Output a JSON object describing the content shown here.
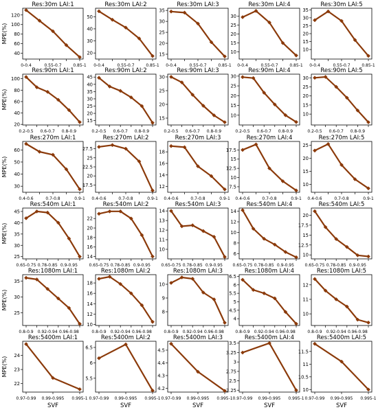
{
  "ylabel": "MPE(%)",
  "xlabel": "SVF",
  "line_color": "#8B3A0A",
  "chart_data": [
    {
      "type": "line",
      "title": "Res:30m   LAI:1",
      "categories": [
        "0-0.4",
        "",
        "0.55-0.7",
        "",
        "0.85-1"
      ],
      "values": [
        130,
        108,
        86,
        57,
        32
      ],
      "yticks": [
        40,
        60,
        80,
        100,
        120
      ],
      "ylim": [
        28,
        134
      ]
    },
    {
      "type": "line",
      "title": "Res:30m   LAI:2",
      "categories": [
        "0-0.4",
        "",
        "0.55-0.7",
        "",
        "0.85-1"
      ],
      "values": [
        54.5,
        47.5,
        41,
        32,
        17.5
      ],
      "yticks": [
        20,
        30,
        40,
        50
      ],
      "ylim": [
        15,
        57
      ]
    },
    {
      "type": "line",
      "title": "Res:30m   LAI:3",
      "categories": [
        "0-0.4",
        "",
        "0.55-0.7",
        "",
        "0.85-1"
      ],
      "values": [
        34.5,
        34,
        29,
        20.5,
        14
      ],
      "yticks": [
        15,
        20,
        25,
        30,
        35
      ],
      "ylim": [
        12.8,
        36
      ]
    },
    {
      "type": "line",
      "title": "Res:30m   LAI:4",
      "categories": [
        "0-0.4",
        "",
        "0.55-0.7",
        "",
        "0.85-1"
      ],
      "values": [
        29.5,
        33,
        26.5,
        15,
        8
      ],
      "yticks": [
        10,
        15,
        20,
        25,
        30
      ],
      "ylim": [
        6,
        34.5
      ]
    },
    {
      "type": "line",
      "title": "Res:30m   LAI:5",
      "categories": [
        "0-0.4",
        "",
        "0.55-0.7",
        "",
        "0.85-1"
      ],
      "values": [
        28.5,
        34,
        28,
        16,
        6
      ],
      "yticks": [
        10,
        15,
        20,
        25,
        30,
        35
      ],
      "ylim": [
        4,
        36
      ]
    },
    {
      "type": "line",
      "title": "Res:90m   LAI:1",
      "categories": [
        "0.2-0.5",
        "",
        "0.6-0.7",
        "",
        "0.8-0.9",
        ""
      ],
      "values": [
        103,
        85,
        77,
        63,
        45,
        24
      ],
      "yticks": [
        20,
        40,
        60,
        80,
        100
      ],
      "ylim": [
        19,
        108
      ]
    },
    {
      "type": "line",
      "title": "Res:90m   LAI:2",
      "categories": [
        "0.2-0.5",
        "",
        "0.6-0.7",
        "",
        "0.8-0.9",
        ""
      ],
      "values": [
        44.5,
        38.5,
        35.5,
        31,
        25,
        13.5
      ],
      "yticks": [
        15,
        20,
        25,
        30,
        35,
        40,
        45
      ],
      "ylim": [
        12,
        47
      ]
    },
    {
      "type": "line",
      "title": "Res:90m   LAI:3",
      "categories": [
        "0.2-0.5",
        "",
        "0.6-0.7",
        "",
        "0.8-0.9",
        ""
      ],
      "values": [
        30,
        28,
        23.5,
        19.5,
        16,
        13.5
      ],
      "yticks": [
        15,
        20,
        25,
        30
      ],
      "ylim": [
        12.5,
        31
      ]
    },
    {
      "type": "line",
      "title": "Res:90m   LAI:4",
      "categories": [
        "0.2-0.5",
        "",
        "0.6-0.7",
        "",
        "0.8-0.9",
        ""
      ],
      "values": [
        29.5,
        29,
        21.5,
        15.5,
        10,
        6.5
      ],
      "yticks": [
        10,
        15,
        20,
        25,
        30
      ],
      "ylim": [
        5,
        31
      ]
    },
    {
      "type": "line",
      "title": "Res:90m   LAI:5",
      "categories": [
        "0.2-0.5",
        "",
        "0.6-0.7",
        "",
        "0.8-0.9",
        ""
      ],
      "values": [
        30,
        30.5,
        25,
        19,
        12,
        5.5
      ],
      "yticks": [
        10,
        15,
        20,
        25,
        30
      ],
      "ylim": [
        4,
        32
      ]
    },
    {
      "type": "line",
      "title": "Res:270m   LAI:1",
      "categories": [
        "0.4-0.6",
        "",
        "0.7-0.8",
        "",
        "0.9-1"
      ],
      "values": [
        65,
        58.5,
        56,
        44,
        27.5
      ],
      "yticks": [
        30,
        40,
        50,
        60
      ],
      "ylim": [
        25,
        67
      ]
    },
    {
      "type": "line",
      "title": "Res:270m   LAI:2",
      "categories": [
        "0.4-0.6",
        "",
        "0.7-0.8",
        "",
        "0.9-1"
      ],
      "values": [
        28,
        28.5,
        27.5,
        24,
        16
      ],
      "yticks": [
        17.5,
        20,
        22.5,
        25,
        27.5
      ],
      "ylim": [
        15.5,
        29.5
      ]
    },
    {
      "type": "line",
      "title": "Res:270m   LAI:3",
      "categories": [
        "0.4-0.6",
        "",
        "0.7-0.8",
        "",
        "0.9-1"
      ],
      "values": [
        19,
        18.8,
        15.5,
        13.8,
        11.5
      ],
      "yticks": [
        12,
        14,
        16,
        18
      ],
      "ylim": [
        11,
        19.8
      ]
    },
    {
      "type": "line",
      "title": "Res:270m   LAI:4",
      "categories": [
        "0.4-0.6",
        "",
        "0.7-0.8",
        "",
        "0.9-1"
      ],
      "values": [
        17.5,
        19,
        12.5,
        9,
        6.5
      ],
      "yticks": [
        7.5,
        10,
        12.5,
        15,
        17.5
      ],
      "ylim": [
        6,
        19.8
      ]
    },
    {
      "type": "line",
      "title": "Res:270m   LAI:5",
      "categories": [
        "0.4-0.6",
        "",
        "0.7-0.8",
        "",
        "0.9-1"
      ],
      "values": [
        23,
        25.5,
        17.5,
        12,
        8.5
      ],
      "yticks": [
        10,
        15,
        20,
        25
      ],
      "ylim": [
        7,
        26.5
      ]
    },
    {
      "type": "line",
      "title": "Res:540m   LAI:1",
      "categories": [
        "0.65-0.75",
        "",
        "0.78-0.85",
        "",
        "0.9-0.95",
        ""
      ],
      "values": [
        42,
        45,
        44.5,
        40,
        33,
        25
      ],
      "yticks": [
        25,
        30,
        35,
        40,
        45
      ],
      "ylim": [
        24,
        46.5
      ]
    },
    {
      "type": "line",
      "title": "Res:540m   LAI:2",
      "categories": [
        "0.65-0.75",
        "",
        "0.78-0.85",
        "",
        "0.9-0.95",
        ""
      ],
      "values": [
        23,
        23.5,
        23.5,
        22,
        18.5,
        14
      ],
      "yticks": [
        14,
        16,
        18,
        20,
        22
      ],
      "ylim": [
        13.5,
        24.2
      ]
    },
    {
      "type": "line",
      "title": "Res:540m   LAI:3",
      "categories": [
        "0.65-0.75",
        "",
        "0.78-0.85",
        "",
        "0.9-0.95",
        ""
      ],
      "values": [
        14,
        12.4,
        12.5,
        11.9,
        11.3,
        9.2
      ],
      "yticks": [
        10,
        11,
        12,
        13,
        14
      ],
      "ylim": [
        9,
        14.3
      ]
    },
    {
      "type": "line",
      "title": "Res:540m   LAI:4",
      "categories": [
        "0.65-0.75",
        "",
        "0.78-0.85",
        "",
        "0.9-0.95",
        ""
      ],
      "values": [
        14.2,
        10.7,
        8.8,
        7.7,
        6.3,
        5.3
      ],
      "yticks": [
        6,
        8,
        10,
        12,
        14
      ],
      "ylim": [
        5,
        14.6
      ]
    },
    {
      "type": "line",
      "title": "Res:540m   LAI:5",
      "categories": [
        "0.65-0.75",
        "",
        "0.78-0.85",
        "",
        "0.9-0.95",
        ""
      ],
      "values": [
        21,
        17,
        14,
        12,
        9.9,
        9.6
      ],
      "yticks": [
        10,
        12.5,
        15,
        17.5,
        20
      ],
      "ylim": [
        9,
        21.8
      ]
    },
    {
      "type": "line",
      "title": "Res:1080m   LAI:1",
      "categories": [
        "0.8-0.9",
        "",
        "0.92-0.94",
        "",
        "0.96-0.98",
        ""
      ],
      "values": [
        36,
        35.5,
        32.5,
        29.5,
        26.5,
        21.5
      ],
      "yticks": [
        25,
        30,
        35
      ],
      "ylim": [
        21,
        37
      ]
    },
    {
      "type": "line",
      "title": "Res:1080m   LAI:2",
      "categories": [
        "0.8-0.9",
        "",
        "0.92-0.94",
        "",
        "0.96-0.98",
        ""
      ],
      "values": [
        18.8,
        19.2,
        17.8,
        16,
        13.7,
        10.5
      ],
      "yticks": [
        10,
        12,
        14,
        16,
        18
      ],
      "ylim": [
        9.8,
        19.6
      ]
    },
    {
      "type": "line",
      "title": "Res:1080m   LAI:3",
      "categories": [
        "0.8-0.9",
        "",
        "0.92-0.94",
        "",
        "0.96-0.98",
        ""
      ],
      "values": [
        10.1,
        10.5,
        10.4,
        9.4,
        8.9,
        7.2
      ],
      "yticks": [
        8,
        9,
        10
      ],
      "ylim": [
        7,
        10.7
      ]
    },
    {
      "type": "line",
      "title": "Res:1080m   LAI:4",
      "categories": [
        "0.8-0.9",
        "",
        "0.92-0.94",
        "",
        "0.96-0.98",
        ""
      ],
      "values": [
        6.3,
        5.7,
        5.5,
        5.2,
        4.4,
        3.7
      ],
      "yticks": [
        4,
        4.5,
        5,
        5.5,
        6,
        6.5
      ],
      "ylim": [
        3.6,
        6.6
      ]
    },
    {
      "type": "line",
      "title": "Res:1080m   LAI:5",
      "categories": [
        "0.8-0.9",
        "",
        "0.92-0.94",
        "",
        "0.96-0.98",
        ""
      ],
      "values": [
        12.4,
        11.6,
        11,
        10.5,
        9.6,
        9.4
      ],
      "yticks": [
        10,
        11,
        12
      ],
      "ylim": [
        9.2,
        12.7
      ]
    },
    {
      "type": "line",
      "title": "Res:5400m   LAI:1",
      "categories": [
        "0.97-0.99",
        "0.99-0.995",
        "0.995-1"
      ],
      "values": [
        24.8,
        22.4,
        21.6
      ],
      "yticks": [
        22,
        23,
        24
      ],
      "ylim": [
        21.4,
        25
      ]
    },
    {
      "type": "line",
      "title": "Res:5400m   LAI:2",
      "categories": [
        "0.97-0.99",
        "0.99-0.995",
        "0.995-1"
      ],
      "values": [
        6.15,
        6.6,
        5.1
      ],
      "yticks": [
        5.5,
        6,
        6.5
      ],
      "ylim": [
        5.05,
        6.7
      ]
    },
    {
      "type": "line",
      "title": "Res:5400m   LAI:3",
      "categories": [
        "0.97-0.99",
        "0.99-0.995",
        "0.995-1"
      ],
      "values": [
        4.55,
        4.33,
        4.18
      ],
      "yticks": [
        4.2,
        4.3,
        4.4,
        4.5
      ],
      "ylim": [
        4.17,
        4.57
      ]
    },
    {
      "type": "line",
      "title": "Res:5400m   LAI:4",
      "categories": [
        "0.97-0.99",
        "0.99-0.995",
        "0.995-1"
      ],
      "values": [
        3.25,
        3.5,
        2.25
      ],
      "yticks": [
        2.25,
        2.5,
        2.75,
        3,
        3.25,
        3.5
      ],
      "ylim": [
        2.2,
        3.55
      ]
    },
    {
      "type": "line",
      "title": "Res:5400m   LAI:5",
      "categories": [
        "0.97-0.99",
        "0.99-0.995",
        "0.995-1"
      ],
      "values": [
        11.8,
        11.1,
        10
      ],
      "yticks": [
        10,
        10.5,
        11,
        11.5
      ],
      "ylim": [
        9.9,
        11.9
      ]
    }
  ]
}
